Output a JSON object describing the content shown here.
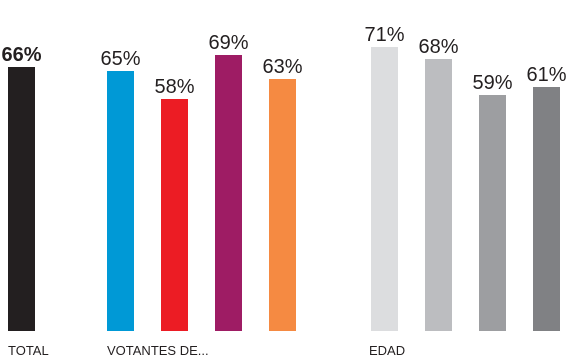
{
  "chart_data": {
    "type": "bar",
    "ylim": [
      0,
      100
    ],
    "grid": false,
    "groups": [
      {
        "label": "TOTAL",
        "bars": [
          {
            "value": 66,
            "label": "66%",
            "color": "#231f20",
            "bold": true
          }
        ]
      },
      {
        "label": "VOTANTES DE...",
        "bars": [
          {
            "value": 65,
            "label": "65%",
            "color": "#0099d6",
            "bold": false
          },
          {
            "value": 58,
            "label": "58%",
            "color": "#ec1c24",
            "bold": false
          },
          {
            "value": 69,
            "label": "69%",
            "color": "#9e1c64",
            "bold": false
          },
          {
            "value": 63,
            "label": "63%",
            "color": "#f58a42",
            "bold": false
          }
        ]
      },
      {
        "label": "EDAD",
        "bars": [
          {
            "value": 71,
            "label": "71%",
            "color": "#dcdddf",
            "bold": false
          },
          {
            "value": 68,
            "label": "68%",
            "color": "#bcbdc0",
            "bold": false
          },
          {
            "value": 59,
            "label": "59%",
            "color": "#9d9e a1",
            "bold": false
          },
          {
            "value": 61,
            "label": "61%",
            "color": "#808184",
            "bold": false
          }
        ]
      }
    ]
  }
}
